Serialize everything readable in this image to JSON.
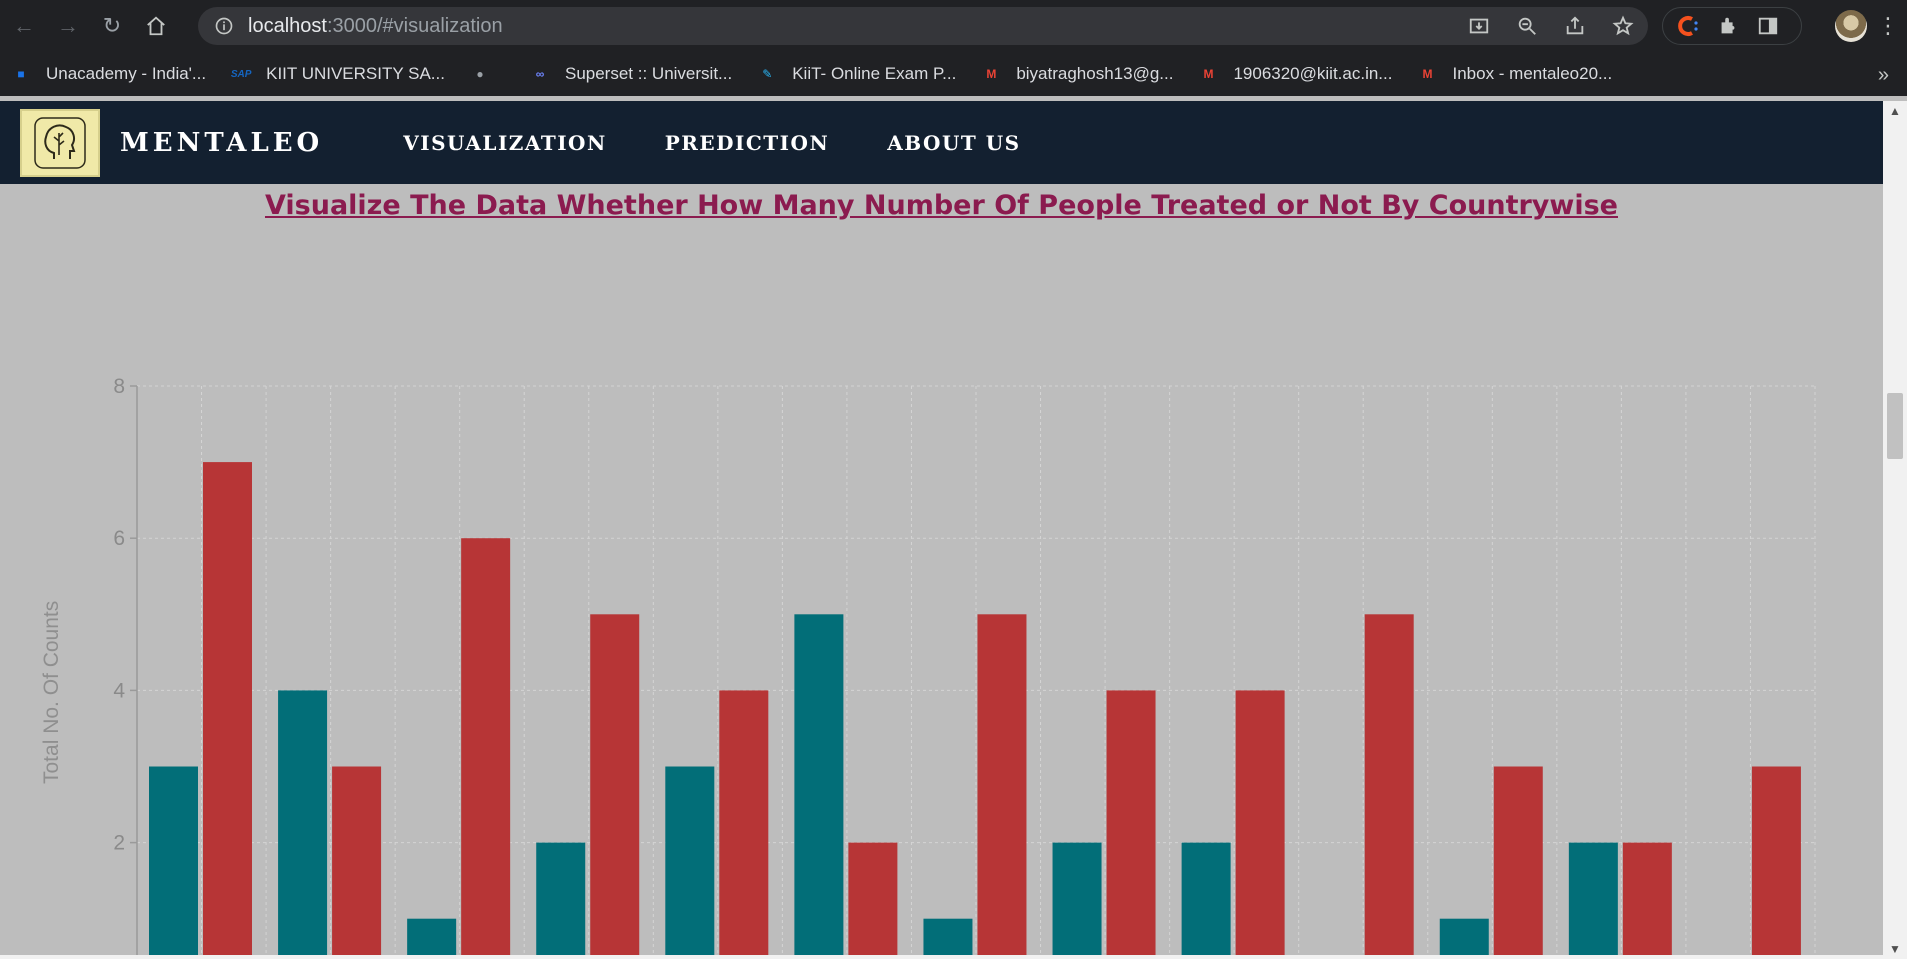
{
  "browser": {
    "url_host": "localhost",
    "url_rest": ":3000/#visualization",
    "bookmarks": [
      {
        "label": "Unacademy - India'...",
        "icon": "unacademy-icon",
        "color": "#1a73e8"
      },
      {
        "label": "KIIT UNIVERSITY SA...",
        "icon": "sap-icon",
        "color": "#1565c0"
      },
      {
        "label": "",
        "icon": "globe-icon",
        "color": "#9aa0a6"
      },
      {
        "label": "Superset :: Universit...",
        "icon": "superset-icon",
        "color": "#6f86ff"
      },
      {
        "label": "KiiT- Online Exam P...",
        "icon": "edit-icon",
        "color": "#29b6f6"
      },
      {
        "label": "biyatraghosh13@g...",
        "icon": "gmail-icon",
        "color": "#ea4335"
      },
      {
        "label": "1906320@kiit.ac.in...",
        "icon": "gmail-icon",
        "color": "#ea4335"
      },
      {
        "label": "Inbox - mentaleo20...",
        "icon": "gmail-icon",
        "color": "#ea4335"
      }
    ],
    "bookmarks_more": "»"
  },
  "app": {
    "brand": "MENTALEO",
    "nav": [
      {
        "label": "VISUALIZATION"
      },
      {
        "label": "PREDICTION"
      },
      {
        "label": "ABOUT US"
      }
    ],
    "heading": "Visualize The Data Whether How Many Number Of People Treated or Not By Countrywise"
  },
  "chart_data": {
    "type": "bar",
    "ylabel": "Total No. Of Counts",
    "yticks": [
      2,
      4,
      6,
      8
    ],
    "ylim_visible": [
      0.5,
      8
    ],
    "grid": true,
    "colors": {
      "series_a": "#026e78",
      "series_b": "#b73536"
    },
    "groups": [
      {
        "a": 3,
        "b": 7
      },
      {
        "a": 4,
        "b": 3
      },
      {
        "a": 1,
        "b": 6
      },
      {
        "a": 2,
        "b": 5
      },
      {
        "a": 3,
        "b": 4
      },
      {
        "a": 5,
        "b": 2
      },
      {
        "a": 1,
        "b": 5
      },
      {
        "a": 2,
        "b": 4
      },
      {
        "a": 2,
        "b": 4
      },
      {
        "a": 0,
        "b": 5
      },
      {
        "a": 1,
        "b": 3
      },
      {
        "a": 2,
        "b": 2
      },
      {
        "a": 0,
        "b": 3
      }
    ]
  }
}
